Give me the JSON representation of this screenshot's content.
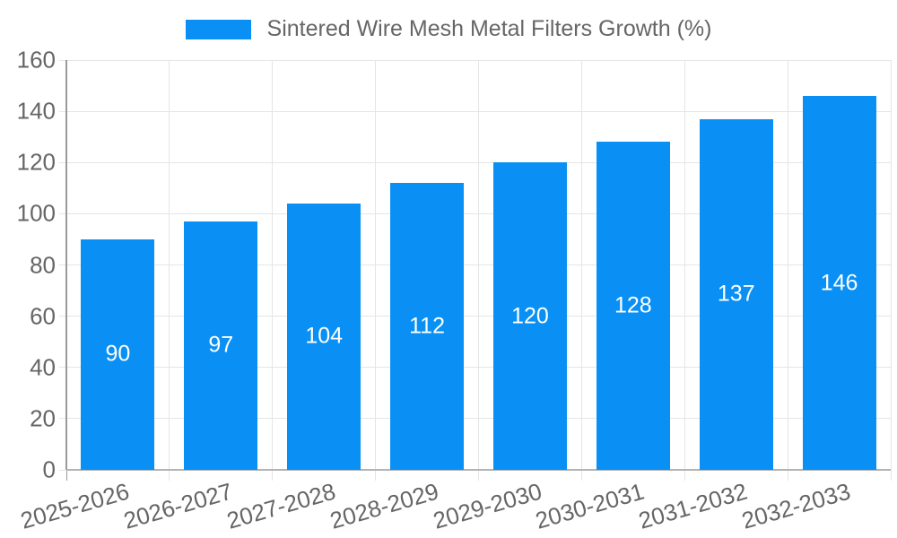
{
  "legend": {
    "label": "Sintered Wire Mesh Metal Filters Growth (%)"
  },
  "chart_data": {
    "type": "bar",
    "title": "Sintered Wire Mesh Metal Filters Growth (%)",
    "categories": [
      "2025-2026",
      "2026-2027",
      "2027-2028",
      "2028-2029",
      "2029-2030",
      "2030-2031",
      "2031-2032",
      "2032-2033"
    ],
    "values": [
      90,
      97,
      104,
      112,
      120,
      128,
      137,
      146
    ],
    "xlabel": "",
    "ylabel": "",
    "ylim": [
      0,
      160
    ],
    "ytick_step": 20,
    "yticks": [
      0,
      20,
      40,
      60,
      80,
      100,
      120,
      140,
      160
    ],
    "grid": true,
    "legend_position": "top",
    "value_labels": "inside-center"
  },
  "colors": {
    "bar": "#0a90f4",
    "value_label": "#ffffff",
    "axis_text": "#666666",
    "legend_text": "#666666",
    "gridline": "#e5e5e5",
    "y_axis_line": "#999999",
    "x_axis_line": "#b3b3b3",
    "background": "#ffffff"
  }
}
